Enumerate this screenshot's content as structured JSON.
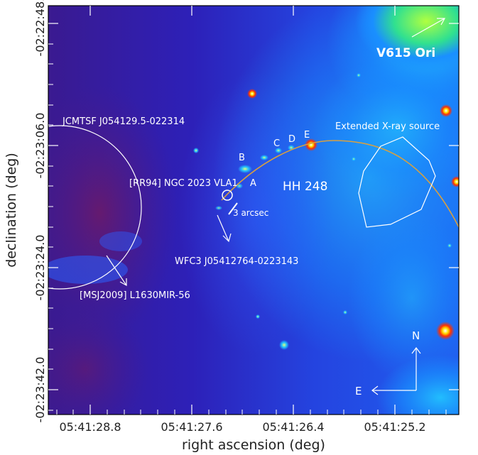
{
  "figure": {
    "xlabel": "right ascension (deg)",
    "ylabel": "declination (deg)",
    "x_ticks": [
      "05:41:28.8",
      "05:41:27.6",
      "05:41:26.4",
      "05:41:25.2"
    ],
    "y_ticks": [
      "-02:22:48.0",
      "-02:23:06.0",
      "-02:23:24.0",
      "-02:23:42.0"
    ]
  },
  "annotations": {
    "v615": "V615 Ori",
    "jcmtsf": "JCMTSF J054129.5-022314",
    "extended_xray": "Extended X-ray source",
    "rr94": "[RR94] NGC 2023 VLA1",
    "hh248": "HH 248",
    "arcsec": "3 arcsec",
    "wfc3": "WFC3 J05412764-0223143",
    "msj2009": "[MSJ2009] L1630MIR-56",
    "knot_a": "A",
    "knot_b": "B",
    "knot_c": "C",
    "knot_d": "D",
    "knot_e": "E"
  },
  "compass": {
    "north": "N",
    "east": "E"
  },
  "colors": {
    "background_nebula": "#2a18a8",
    "hot_region": "#ff2000",
    "arc": "#d8a040",
    "annotation": "#ffffff"
  }
}
